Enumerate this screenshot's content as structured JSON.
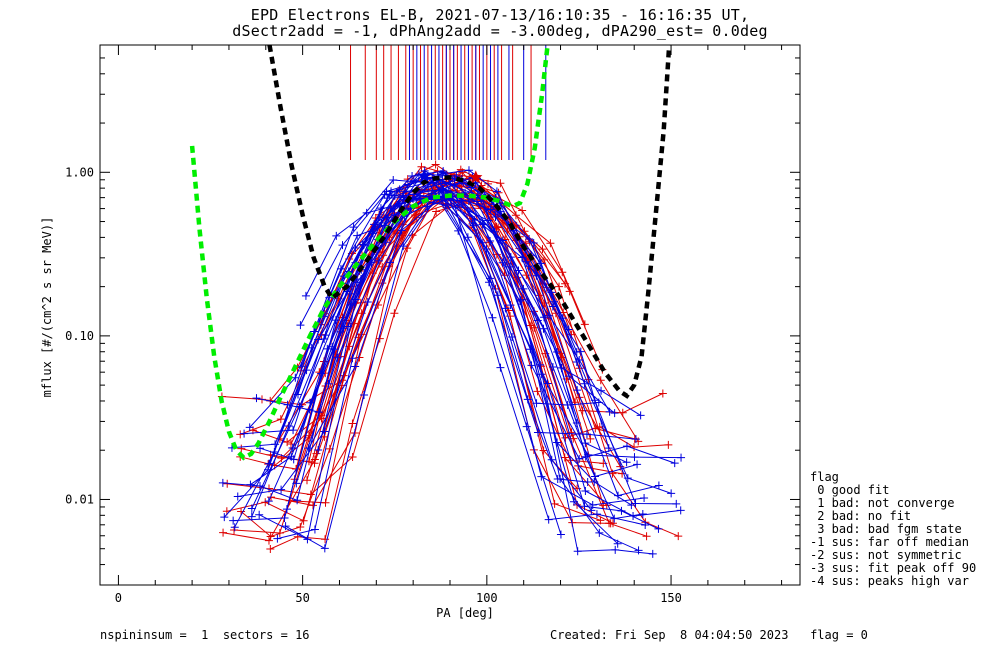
{
  "title": {
    "line1": "EPD Electrons EL-B, 2021-07-13/16:10:35 - 16:16:35 UT,",
    "line2": "dSectr2add = -1, dPhAng2add = -3.00deg, dPA290_est=   0.0deg"
  },
  "footer": {
    "left": "nspininsum =  1  sectors = 16",
    "right": "Created: Fri Sep  8 04:04:50 2023   flag = 0"
  },
  "legend": {
    "title": "flag",
    "items": [
      " 0 good fit",
      " 1 bad: not converge",
      " 2 bad: no fit",
      " 3 bad: bad fgm state",
      "-1 sus: far off median",
      "-2 sus: not symmetric",
      "-3 sus: fit peak off 90",
      "-4 sus: peaks high var"
    ]
  },
  "chart_data": {
    "type": "line",
    "title": "EPD Electrons EL-B, 2021-07-13/16:10:35 - 16:16:35 UT, dSectr2add = -1, dPhAng2add = -3.00deg, dPA290_est=   0.0deg",
    "xlabel": "PA [deg]",
    "ylabel": "mflux [#/(cm^2 s sr MeV)]",
    "xlim": [
      -5,
      185
    ],
    "ylim": [
      0.003,
      6.0
    ],
    "yscale": "log",
    "xticks": [
      0,
      50,
      100,
      150
    ],
    "xtick_labels": [
      "0",
      "50",
      "100",
      "150"
    ],
    "yticks": [
      0.01,
      0.1,
      1.0
    ],
    "ytick_labels": [
      "0.01",
      "0.10",
      "1.00"
    ],
    "colors": {
      "red": "#dd0000",
      "blue": "#0000dd",
      "black": "#000000",
      "green": "#00ee00"
    },
    "black_fit": [
      [
        41,
        6.0
      ],
      [
        44,
        2.5
      ],
      [
        47,
        1.1
      ],
      [
        50,
        0.55
      ],
      [
        53,
        0.3
      ],
      [
        56,
        0.2
      ],
      [
        58,
        0.17
      ],
      [
        62,
        0.2
      ],
      [
        67,
        0.28
      ],
      [
        72,
        0.4
      ],
      [
        77,
        0.6
      ],
      [
        80,
        0.75
      ],
      [
        83,
        0.87
      ],
      [
        86,
        0.92
      ],
      [
        90,
        0.93
      ],
      [
        94,
        0.89
      ],
      [
        98,
        0.8
      ],
      [
        102,
        0.65
      ],
      [
        106,
        0.5
      ],
      [
        110,
        0.35
      ],
      [
        115,
        0.24
      ],
      [
        120,
        0.17
      ],
      [
        124,
        0.12
      ],
      [
        128,
        0.085
      ],
      [
        132,
        0.06
      ],
      [
        136,
        0.046
      ],
      [
        138,
        0.043
      ],
      [
        140,
        0.05
      ],
      [
        142,
        0.075
      ],
      [
        144,
        0.2
      ],
      [
        146,
        0.6
      ],
      [
        148,
        1.8
      ],
      [
        149.5,
        6.0
      ]
    ],
    "green_fit": [
      [
        20,
        1.45
      ],
      [
        22,
        0.45
      ],
      [
        24,
        0.17
      ],
      [
        26,
        0.075
      ],
      [
        28,
        0.04
      ],
      [
        30,
        0.026
      ],
      [
        32,
        0.02
      ],
      [
        34,
        0.018
      ],
      [
        36,
        0.019
      ],
      [
        38,
        0.022
      ],
      [
        41,
        0.03
      ],
      [
        44,
        0.042
      ],
      [
        48,
        0.065
      ],
      [
        52,
        0.1
      ],
      [
        56,
        0.15
      ],
      [
        60,
        0.2
      ],
      [
        65,
        0.28
      ],
      [
        70,
        0.38
      ],
      [
        75,
        0.5
      ],
      [
        80,
        0.62
      ],
      [
        85,
        0.7
      ],
      [
        90,
        0.72
      ],
      [
        95,
        0.72
      ],
      [
        100,
        0.7
      ],
      [
        104,
        0.66
      ],
      [
        107,
        0.62
      ],
      [
        109,
        0.65
      ],
      [
        111,
        0.85
      ],
      [
        113,
        1.4
      ],
      [
        115,
        3.0
      ],
      [
        116.5,
        6.0
      ]
    ],
    "red_peak": [
      97,
      0.93
    ],
    "blue_peak": [
      83,
      0.95
    ],
    "red_ticks_pa": [
      63,
      67,
      70,
      72,
      74,
      76,
      78,
      80,
      82,
      84,
      86,
      88,
      89,
      90,
      91,
      92,
      94,
      96,
      97,
      98,
      100,
      102,
      104,
      107,
      112
    ],
    "blue_ticks_pa": [
      79,
      81,
      83,
      85,
      87,
      89,
      91,
      93,
      95,
      97,
      99,
      101,
      103,
      106,
      110,
      116
    ]
  }
}
